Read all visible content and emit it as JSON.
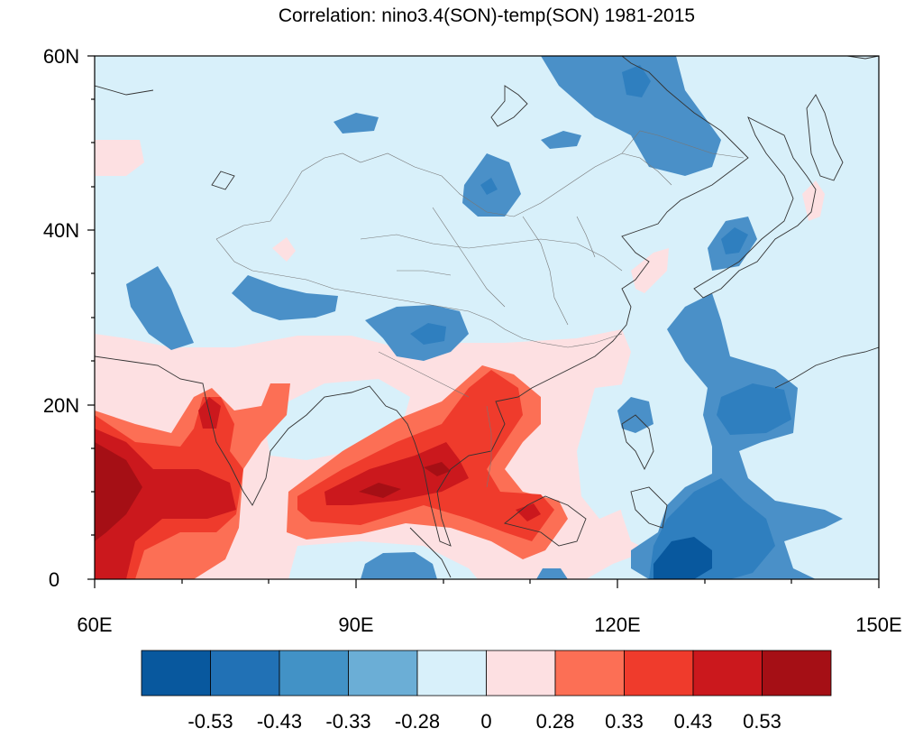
{
  "title": "Correlation: nino3.4(SON)-temp(SON) 1981-2015",
  "axes": {
    "lat_ticks": [
      "60N",
      "40N",
      "20N",
      "0"
    ],
    "lon_ticks": [
      "60E",
      "90E",
      "120E",
      "150E"
    ]
  },
  "colorbar": {
    "colors": [
      "#08589e",
      "#2171b5",
      "#4292c6",
      "#6baed6",
      "#d8f0fa",
      "#fde0e2",
      "#fc6f55",
      "#ef3b2c",
      "#cb181d",
      "#a50f15"
    ],
    "labels": [
      "-0.53",
      "-0.43",
      "-0.33",
      "-0.28",
      "0",
      "0.28",
      "0.33",
      "0.43",
      "0.53"
    ]
  },
  "chart_data": {
    "type": "heatmap",
    "title": "Correlation: nino3.4(SON)-temp(SON) 1981-2015",
    "x_range": [
      "60E",
      "150E"
    ],
    "y_range": [
      "0",
      "60N"
    ],
    "levels": [
      -0.53,
      -0.43,
      -0.33,
      -0.28,
      0,
      0.28,
      0.33,
      0.43,
      0.53
    ]
  }
}
